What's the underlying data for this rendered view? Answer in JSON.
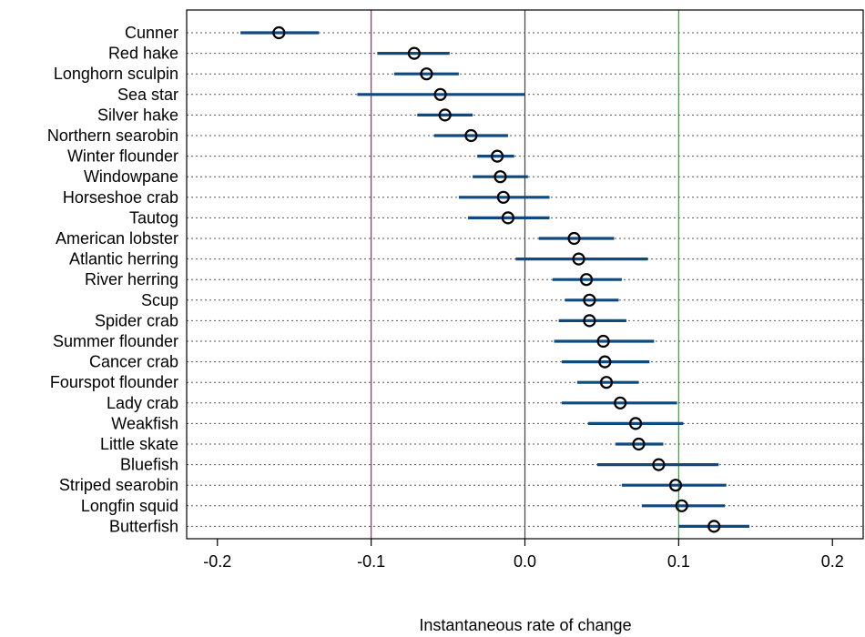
{
  "chart_data": {
    "type": "dot-interval",
    "xlabel": "Instantaneous rate of change",
    "ylabel": "",
    "xlim": [
      -0.22,
      0.22
    ],
    "x_ticks": [
      -0.2,
      -0.1,
      0.0,
      0.1,
      0.2
    ],
    "x_tick_labels": [
      "-0.2",
      "-0.1",
      "0.0",
      "0.1",
      "0.2"
    ],
    "grid": "dotted horizontal lines per category",
    "reference_lines": [
      {
        "x": -0.1,
        "color": "#9c2f63"
      },
      {
        "x": 0.0,
        "color": "#444444"
      },
      {
        "x": 0.1,
        "color": "#3aa13a"
      }
    ],
    "colors": {
      "interval": "#0e4a80",
      "point": "#000000"
    },
    "categories": [
      "Cunner",
      "Red hake",
      "Longhorn sculpin",
      "Sea star",
      "Silver hake",
      "Northern searobin",
      "Winter flounder",
      "Windowpane",
      "Horseshoe crab",
      "Tautog",
      "American lobster",
      "Atlantic herring",
      "River herring",
      "Scup",
      "Spider crab",
      "Summer flounder",
      "Cancer crab",
      "Fourspot flounder",
      "Lady crab",
      "Weakfish",
      "Little skate",
      "Bluefish",
      "Striped searobin",
      "Longfin squid",
      "Butterfish"
    ],
    "estimate": [
      -0.16,
      -0.072,
      -0.064,
      -0.055,
      -0.052,
      -0.035,
      -0.018,
      -0.016,
      -0.014,
      -0.011,
      0.032,
      0.035,
      0.04,
      0.042,
      0.042,
      0.051,
      0.052,
      0.053,
      0.062,
      0.072,
      0.074,
      0.087,
      0.098,
      0.102,
      0.123
    ],
    "lower": [
      -0.185,
      -0.096,
      -0.085,
      -0.109,
      -0.07,
      -0.059,
      -0.031,
      -0.034,
      -0.043,
      -0.037,
      0.009,
      -0.006,
      0.018,
      0.026,
      0.022,
      0.019,
      0.024,
      0.034,
      0.024,
      0.041,
      0.059,
      0.047,
      0.063,
      0.076,
      0.1
    ],
    "upper": [
      -0.134,
      -0.049,
      -0.043,
      0.0,
      -0.034,
      -0.011,
      -0.007,
      0.002,
      0.016,
      0.016,
      0.058,
      0.08,
      0.063,
      0.061,
      0.066,
      0.084,
      0.081,
      0.074,
      0.099,
      0.103,
      0.09,
      0.126,
      0.131,
      0.13,
      0.146
    ]
  }
}
